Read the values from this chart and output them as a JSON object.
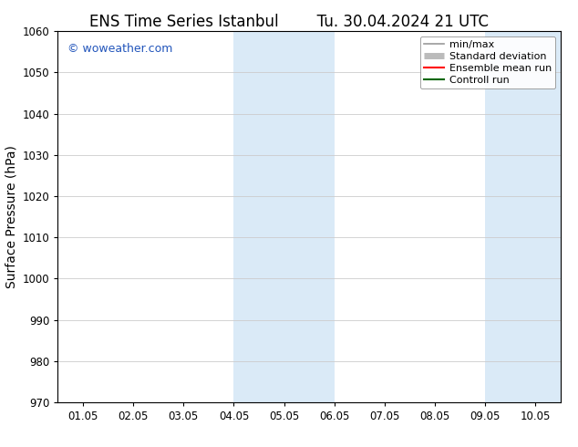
{
  "title_left": "ENS Time Series Istanbul",
  "title_right": "Tu. 30.04.2024 21 UTC",
  "ylabel": "Surface Pressure (hPa)",
  "ylim": [
    970,
    1060
  ],
  "yticks": [
    970,
    980,
    990,
    1000,
    1010,
    1020,
    1030,
    1040,
    1050,
    1060
  ],
  "xtick_labels": [
    "01.05",
    "02.05",
    "03.05",
    "04.05",
    "05.05",
    "06.05",
    "07.05",
    "08.05",
    "09.05",
    "10.05"
  ],
  "x_num_ticks": 10,
  "shaded_bands": [
    {
      "xmin": 3.0,
      "xmax": 5.0
    },
    {
      "xmin": 8.0,
      "xmax": 9.5
    }
  ],
  "shade_color": "#daeaf7",
  "watermark_text": "© woweather.com",
  "watermark_color": "#2255bb",
  "legend_items": [
    {
      "label": "min/max",
      "color": "#999999",
      "lw": 1.2,
      "style": "solid",
      "type": "minmax"
    },
    {
      "label": "Standard deviation",
      "color": "#bbbbbb",
      "lw": 5,
      "style": "solid",
      "type": "band"
    },
    {
      "label": "Ensemble mean run",
      "color": "#ff0000",
      "lw": 1.5,
      "style": "solid",
      "type": "line"
    },
    {
      "label": "Controll run",
      "color": "#006600",
      "lw": 1.5,
      "style": "solid",
      "type": "line"
    }
  ],
  "bg_color": "#ffffff",
  "plot_bg_color": "#ffffff",
  "grid_color": "#cccccc",
  "spine_color": "#000000",
  "title_fontsize": 12,
  "tick_fontsize": 8.5,
  "ylabel_fontsize": 10,
  "watermark_fontsize": 9,
  "legend_fontsize": 8
}
